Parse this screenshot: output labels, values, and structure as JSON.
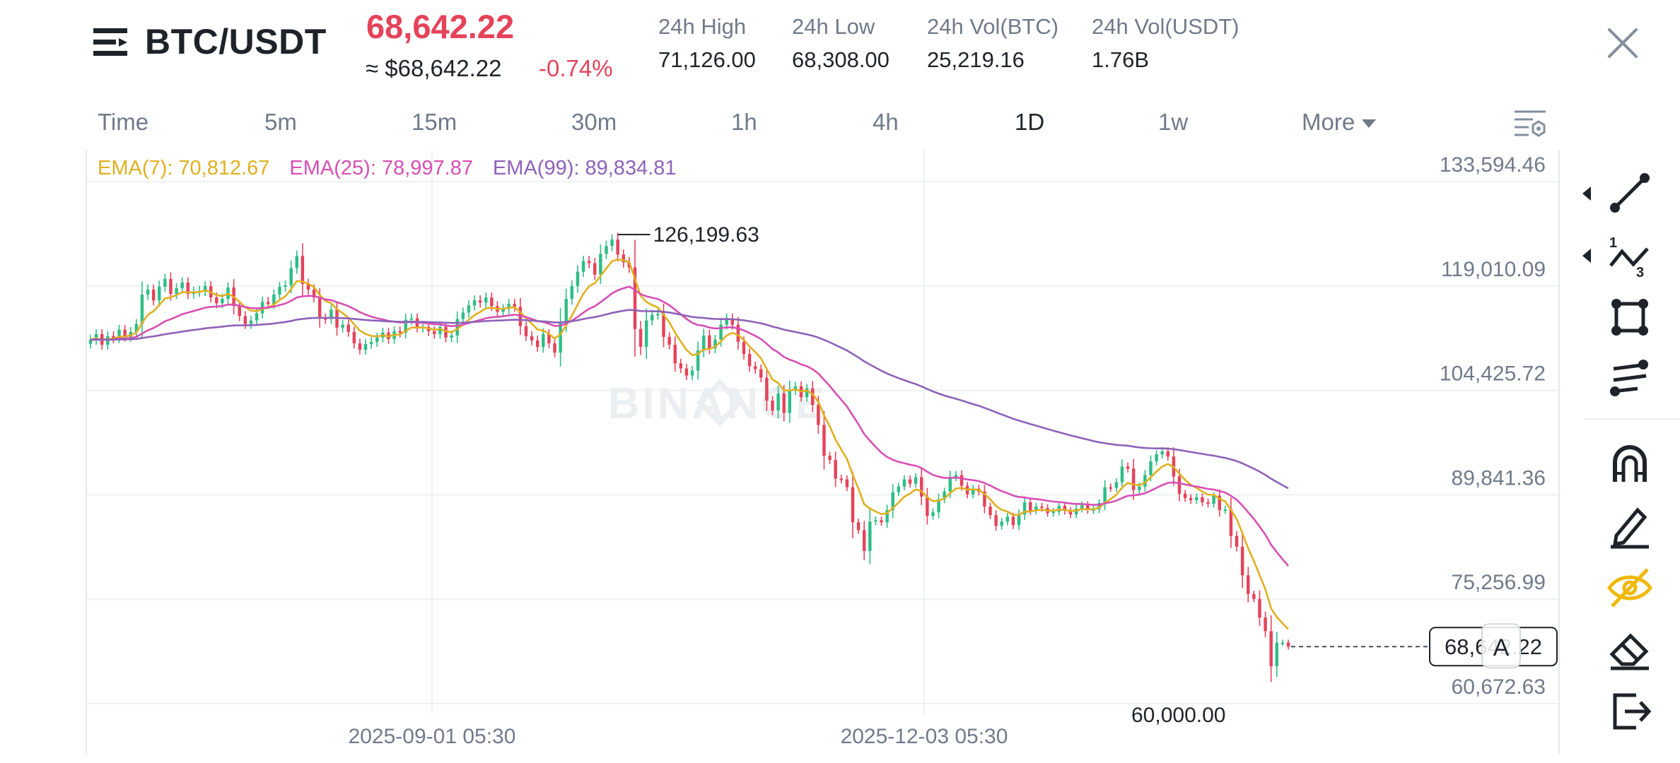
{
  "header": {
    "pair": "BTC/USDT",
    "last_price": "68,642.22",
    "price_usd": "≈ $68,642.22",
    "change_pct": "-0.74%",
    "stats": [
      {
        "label": "24h High",
        "value": "71,126.00"
      },
      {
        "label": "24h Low",
        "value": "68,308.00"
      },
      {
        "label": "24h Vol(BTC)",
        "value": "25,219.16"
      },
      {
        "label": "24h Vol(USDT)",
        "value": "1.76B"
      }
    ]
  },
  "timeframes": {
    "items": [
      "Time",
      "5m",
      "15m",
      "30m",
      "1h",
      "4h",
      "1D",
      "1w"
    ],
    "active": "1D",
    "more_label": "More"
  },
  "indicators": {
    "ema7": "EMA(7): 70,812.67",
    "ema25": "EMA(25): 78,997.87",
    "ema99": "EMA(99): 89,834.81"
  },
  "colors": {
    "up": "#2ebd85",
    "down": "#e5435a",
    "ema7": "#e0b020",
    "ema25": "#d74fb4",
    "ema99": "#8e62b8",
    "accent": "#f0b90b"
  },
  "watermark": "BINANCE",
  "chart_data": {
    "type": "candlestick",
    "symbol": "BTC/USDT",
    "interval": "1D",
    "y_ticks": [
      "133,594.46",
      "119,010.09",
      "104,425.72",
      "89,841.36",
      "75,256.99",
      "60,672.63"
    ],
    "ylim": [
      60672.63,
      133594.46
    ],
    "x_ticks": [
      "2025-09-01 05:30",
      "2025-12-03 05:30"
    ],
    "high_label": "126,199.63",
    "high_value": 126199.63,
    "low_label": "60,000.00",
    "last_price_label": "68,642.22",
    "last_price": 68642.22,
    "grid": true,
    "closes": [
      111500,
      112300,
      110800,
      112000,
      111700,
      112900,
      111900,
      112600,
      113700,
      117800,
      118500,
      117000,
      118900,
      120000,
      117900,
      118700,
      119500,
      117900,
      118200,
      118300,
      119000,
      117400,
      116600,
      117200,
      118800,
      116200,
      114800,
      113700,
      114200,
      115200,
      116800,
      116500,
      117800,
      118900,
      119100,
      121500,
      123200,
      119300,
      118500,
      117400,
      114500,
      114400,
      115700,
      113200,
      113600,
      112600,
      111000,
      110100,
      110900,
      111200,
      111800,
      112500,
      111600,
      112700,
      112500,
      114300,
      114500,
      113200,
      113300,
      112700,
      112300,
      113300,
      111800,
      112100,
      114400,
      115300,
      116300,
      117000,
      116700,
      117400,
      116200,
      115400,
      115800,
      116500,
      116100,
      113400,
      112000,
      111400,
      110500,
      112300,
      111000,
      109700,
      114000,
      117200,
      119000,
      121000,
      122500,
      122200,
      120600,
      123500,
      124600,
      125500,
      123400,
      122300,
      121600,
      113000,
      110500,
      114200,
      115000,
      115100,
      111900,
      110800,
      108200,
      107500,
      106500,
      107200,
      110000,
      112100,
      110300,
      111500,
      113600,
      114500,
      113600,
      111200,
      109500,
      107800,
      107400,
      106200,
      103000,
      101600,
      104000,
      101300,
      104400,
      105000,
      103500,
      104700,
      102400,
      99600,
      95300,
      94700,
      92100,
      92000,
      90900,
      86000,
      84900,
      82000,
      86100,
      86300,
      86000,
      87700,
      90200,
      91000,
      92000,
      91400,
      92300,
      89600,
      86900,
      87400,
      89200,
      90300,
      92300,
      92600,
      91100,
      89900,
      90700,
      90300,
      88200,
      87000,
      85500,
      86100,
      86800,
      85600,
      87100,
      88800,
      87600,
      88200,
      88000,
      87300,
      87500,
      88300,
      87600,
      87100,
      87900,
      88400,
      87700,
      87800,
      88700,
      90900,
      90800,
      91600,
      93800,
      93500,
      90500,
      91000,
      92600,
      94500,
      95500,
      95900,
      95200,
      92400,
      90000,
      89400,
      89100,
      89500,
      88800,
      88600,
      89700,
      87700,
      87800,
      84100,
      82600,
      78600,
      76000,
      75300,
      72700,
      70800,
      65900,
      69200,
      69200,
      68642.22
    ],
    "series": [
      {
        "name": "EMA(7)",
        "current": 70812.67
      },
      {
        "name": "EMA(25)",
        "current": 78997.87
      },
      {
        "name": "EMA(99)",
        "current": 89834.81
      }
    ]
  },
  "toolbar": {
    "tools": [
      "trendline-tool",
      "fibonacci-tool",
      "shape-tool",
      "parallel-lines-tool",
      "magnet-tool",
      "pencil-tool",
      "hide-drawings-tool",
      "eraser-tool",
      "exit-tool"
    ]
  }
}
